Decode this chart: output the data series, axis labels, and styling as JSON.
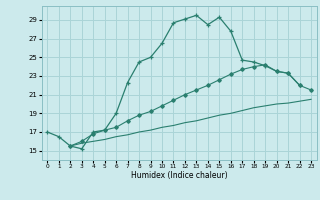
{
  "xlabel": "Humidex (Indice chaleur)",
  "bg_color": "#cceaec",
  "grid_color": "#aad4d7",
  "line_color": "#2a7f6f",
  "x_ticks": [
    0,
    1,
    2,
    3,
    4,
    5,
    6,
    7,
    8,
    9,
    10,
    11,
    12,
    13,
    14,
    15,
    16,
    17,
    18,
    19,
    20,
    21,
    22,
    23
  ],
  "y_ticks": [
    15,
    17,
    19,
    21,
    23,
    25,
    27,
    29
  ],
  "xlim": [
    -0.5,
    23.5
  ],
  "ylim": [
    14.0,
    30.5
  ],
  "line1_x": [
    0,
    1,
    2,
    3,
    4,
    5,
    6,
    7,
    8,
    9,
    10,
    11,
    12,
    13,
    14,
    15,
    16,
    17,
    18,
    19,
    20,
    21,
    22
  ],
  "line1_y": [
    17.0,
    16.5,
    15.5,
    15.2,
    17.0,
    17.2,
    19.0,
    22.3,
    24.5,
    25.0,
    26.5,
    28.7,
    29.1,
    29.5,
    28.5,
    29.3,
    27.8,
    24.7,
    24.5,
    24.1,
    23.5,
    23.3,
    22.0
  ],
  "line2_x": [
    2,
    3,
    4,
    5,
    6,
    7,
    8,
    9,
    10,
    11,
    12,
    13,
    14,
    15,
    16,
    17,
    18,
    19,
    20,
    21,
    22,
    23
  ],
  "line2_y": [
    15.5,
    16.0,
    16.8,
    17.2,
    17.5,
    18.2,
    18.8,
    19.2,
    19.8,
    20.4,
    21.0,
    21.5,
    22.0,
    22.6,
    23.2,
    23.7,
    24.0,
    24.2,
    23.5,
    23.3,
    22.0,
    21.5
  ],
  "line3_x": [
    2,
    3,
    4,
    5,
    6,
    7,
    8,
    9,
    10,
    11,
    12,
    13,
    14,
    15,
    16,
    17,
    18,
    19,
    20,
    21,
    22,
    23
  ],
  "line3_y": [
    15.5,
    15.8,
    16.0,
    16.2,
    16.5,
    16.7,
    17.0,
    17.2,
    17.5,
    17.7,
    18.0,
    18.2,
    18.5,
    18.8,
    19.0,
    19.3,
    19.6,
    19.8,
    20.0,
    20.1,
    20.3,
    20.5
  ]
}
